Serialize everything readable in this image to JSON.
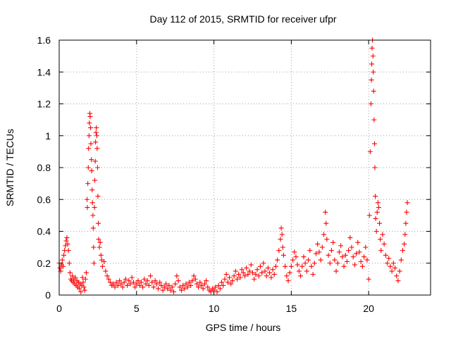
{
  "chart_data": {
    "type": "scatter",
    "title": "Day 112 of 2015, SRMTID for receiver ufpr",
    "xlabel": "GPS time / hours",
    "ylabel": "SRMTID / TECUs",
    "xlim": [
      0,
      24
    ],
    "ylim": [
      0,
      1.6
    ],
    "xticks": [
      0,
      5,
      10,
      15,
      20
    ],
    "xtick_labels": [
      "0",
      "5",
      "10",
      "15",
      "20"
    ],
    "yticks": [
      0,
      0.2,
      0.4,
      0.6,
      0.8,
      1.0,
      1.2,
      1.4,
      1.6
    ],
    "ytick_labels": [
      "0",
      "0.2",
      "0.4",
      "0.6",
      "0.8",
      "1",
      "1.2",
      "1.4",
      "1.6"
    ],
    "grid": true,
    "marker": "+",
    "series": [
      {
        "name": "SRMTID",
        "color": "#ff0000",
        "points": [
          [
            0.0,
            0.2
          ],
          [
            0.05,
            0.17
          ],
          [
            0.1,
            0.15
          ],
          [
            0.15,
            0.19
          ],
          [
            0.2,
            0.22
          ],
          [
            0.25,
            0.18
          ],
          [
            0.3,
            0.25
          ],
          [
            0.35,
            0.28
          ],
          [
            0.4,
            0.31
          ],
          [
            0.45,
            0.34
          ],
          [
            0.5,
            0.36
          ],
          [
            0.55,
            0.32
          ],
          [
            0.6,
            0.28
          ],
          [
            0.65,
            0.2
          ],
          [
            0.7,
            0.14
          ],
          [
            0.75,
            0.1
          ],
          [
            0.8,
            0.09
          ],
          [
            0.85,
            0.12
          ],
          [
            0.9,
            0.08
          ],
          [
            0.95,
            0.1
          ],
          [
            1.0,
            0.07
          ],
          [
            1.05,
            0.11
          ],
          [
            1.1,
            0.06
          ],
          [
            1.15,
            0.09
          ],
          [
            1.2,
            0.05
          ],
          [
            1.25,
            0.08
          ],
          [
            1.3,
            0.04
          ],
          [
            1.35,
            0.07
          ],
          [
            1.4,
            0.02
          ],
          [
            1.45,
            0.06
          ],
          [
            1.5,
            0.11
          ],
          [
            1.55,
            0.08
          ],
          [
            1.6,
            0.05
          ],
          [
            1.65,
            0.03
          ],
          [
            1.7,
            0.1
          ],
          [
            1.75,
            0.14
          ],
          [
            1.8,
            0.6
          ],
          [
            1.82,
            0.55
          ],
          [
            1.85,
            0.7
          ],
          [
            1.88,
            0.8
          ],
          [
            1.9,
            0.92
          ],
          [
            1.93,
            1.0
          ],
          [
            1.95,
            1.08
          ],
          [
            1.98,
            1.14
          ],
          [
            2.0,
            1.12
          ],
          [
            2.03,
            1.05
          ],
          [
            2.05,
            0.95
          ],
          [
            2.08,
            0.85
          ],
          [
            2.1,
            0.78
          ],
          [
            2.13,
            0.66
          ],
          [
            2.15,
            0.58
          ],
          [
            2.18,
            0.5
          ],
          [
            2.2,
            0.42
          ],
          [
            2.22,
            0.3
          ],
          [
            2.25,
            0.2
          ],
          [
            2.28,
            0.55
          ],
          [
            2.3,
            0.72
          ],
          [
            2.33,
            0.84
          ],
          [
            2.35,
            0.96
          ],
          [
            2.38,
            1.02
          ],
          [
            2.4,
            1.05
          ],
          [
            2.43,
            1.0
          ],
          [
            2.45,
            0.92
          ],
          [
            2.48,
            0.8
          ],
          [
            2.5,
            0.62
          ],
          [
            2.53,
            0.45
          ],
          [
            2.55,
            0.35
          ],
          [
            2.6,
            0.3
          ],
          [
            2.65,
            0.33
          ],
          [
            2.7,
            0.25
          ],
          [
            2.75,
            0.22
          ],
          [
            2.8,
            0.18
          ],
          [
            2.9,
            0.21
          ],
          [
            3.0,
            0.15
          ],
          [
            3.1,
            0.12
          ],
          [
            3.2,
            0.1
          ],
          [
            3.3,
            0.08
          ],
          [
            3.4,
            0.06
          ],
          [
            3.5,
            0.07
          ],
          [
            3.6,
            0.05
          ],
          [
            3.7,
            0.08
          ],
          [
            3.8,
            0.06
          ],
          [
            3.9,
            0.09
          ],
          [
            4.0,
            0.07
          ],
          [
            4.1,
            0.05
          ],
          [
            4.2,
            0.08
          ],
          [
            4.3,
            0.1
          ],
          [
            4.4,
            0.06
          ],
          [
            4.5,
            0.09
          ],
          [
            4.6,
            0.07
          ],
          [
            4.7,
            0.11
          ],
          [
            4.8,
            0.08
          ],
          [
            4.9,
            0.05
          ],
          [
            5.0,
            0.07
          ],
          [
            5.1,
            0.09
          ],
          [
            5.2,
            0.06
          ],
          [
            5.3,
            0.08
          ],
          [
            5.4,
            0.05
          ],
          [
            5.5,
            0.1
          ],
          [
            5.6,
            0.07
          ],
          [
            5.7,
            0.09
          ],
          [
            5.8,
            0.06
          ],
          [
            5.9,
            0.12
          ],
          [
            6.0,
            0.08
          ],
          [
            6.1,
            0.05
          ],
          [
            6.2,
            0.09
          ],
          [
            6.3,
            0.07
          ],
          [
            6.4,
            0.04
          ],
          [
            6.5,
            0.08
          ],
          [
            6.6,
            0.06
          ],
          [
            6.7,
            0.03
          ],
          [
            6.8,
            0.05
          ],
          [
            6.9,
            0.07
          ],
          [
            7.0,
            0.04
          ],
          [
            7.1,
            0.06
          ],
          [
            7.2,
            0.03
          ],
          [
            7.3,
            0.05
          ],
          [
            7.4,
            0.02
          ],
          [
            7.5,
            0.07
          ],
          [
            7.6,
            0.12
          ],
          [
            7.7,
            0.09
          ],
          [
            7.8,
            0.05
          ],
          [
            7.9,
            0.03
          ],
          [
            8.0,
            0.06
          ],
          [
            8.1,
            0.04
          ],
          [
            8.2,
            0.07
          ],
          [
            8.3,
            0.05
          ],
          [
            8.4,
            0.08
          ],
          [
            8.5,
            0.06
          ],
          [
            8.6,
            0.09
          ],
          [
            8.7,
            0.12
          ],
          [
            8.8,
            0.1
          ],
          [
            8.9,
            0.07
          ],
          [
            9.0,
            0.05
          ],
          [
            9.1,
            0.08
          ],
          [
            9.2,
            0.06
          ],
          [
            9.3,
            0.04
          ],
          [
            9.4,
            0.07
          ],
          [
            9.5,
            0.09
          ],
          [
            9.6,
            0.05
          ],
          [
            9.7,
            0.03
          ],
          [
            9.8,
            0.02
          ],
          [
            9.9,
            0.04
          ],
          [
            10.0,
            0.03
          ],
          [
            10.1,
            0.05
          ],
          [
            10.2,
            0.02
          ],
          [
            10.3,
            0.06
          ],
          [
            10.4,
            0.04
          ],
          [
            10.5,
            0.08
          ],
          [
            10.6,
            0.06
          ],
          [
            10.7,
            0.1
          ],
          [
            10.8,
            0.13
          ],
          [
            10.9,
            0.08
          ],
          [
            11.0,
            0.11
          ],
          [
            11.1,
            0.07
          ],
          [
            11.2,
            0.09
          ],
          [
            11.3,
            0.12
          ],
          [
            11.4,
            0.15
          ],
          [
            11.5,
            0.1
          ],
          [
            11.6,
            0.13
          ],
          [
            11.7,
            0.11
          ],
          [
            11.8,
            0.16
          ],
          [
            11.9,
            0.14
          ],
          [
            12.0,
            0.12
          ],
          [
            12.1,
            0.17
          ],
          [
            12.2,
            0.13
          ],
          [
            12.3,
            0.15
          ],
          [
            12.4,
            0.19
          ],
          [
            12.5,
            0.14
          ],
          [
            12.6,
            0.1
          ],
          [
            12.7,
            0.13
          ],
          [
            12.8,
            0.16
          ],
          [
            12.9,
            0.12
          ],
          [
            13.0,
            0.18
          ],
          [
            13.1,
            0.14
          ],
          [
            13.2,
            0.2
          ],
          [
            13.3,
            0.15
          ],
          [
            13.4,
            0.12
          ],
          [
            13.5,
            0.17
          ],
          [
            13.6,
            0.14
          ],
          [
            13.7,
            0.11
          ],
          [
            13.8,
            0.16
          ],
          [
            13.9,
            0.13
          ],
          [
            14.0,
            0.18
          ],
          [
            14.1,
            0.22
          ],
          [
            14.2,
            0.28
          ],
          [
            14.3,
            0.35
          ],
          [
            14.35,
            0.42
          ],
          [
            14.4,
            0.38
          ],
          [
            14.45,
            0.3
          ],
          [
            14.5,
            0.25
          ],
          [
            14.6,
            0.18
          ],
          [
            14.7,
            0.12
          ],
          [
            14.8,
            0.09
          ],
          [
            14.9,
            0.14
          ],
          [
            15.0,
            0.18
          ],
          [
            15.1,
            0.22
          ],
          [
            15.2,
            0.27
          ],
          [
            15.3,
            0.24
          ],
          [
            15.4,
            0.19
          ],
          [
            15.5,
            0.15
          ],
          [
            15.6,
            0.12
          ],
          [
            15.7,
            0.18
          ],
          [
            15.8,
            0.24
          ],
          [
            15.9,
            0.2
          ],
          [
            16.0,
            0.15
          ],
          [
            16.1,
            0.22
          ],
          [
            16.2,
            0.28
          ],
          [
            16.3,
            0.18
          ],
          [
            16.4,
            0.13
          ],
          [
            16.5,
            0.2
          ],
          [
            16.6,
            0.26
          ],
          [
            16.7,
            0.32
          ],
          [
            16.8,
            0.27
          ],
          [
            16.9,
            0.22
          ],
          [
            17.0,
            0.3
          ],
          [
            17.1,
            0.38
          ],
          [
            17.2,
            0.52
          ],
          [
            17.25,
            0.45
          ],
          [
            17.3,
            0.35
          ],
          [
            17.4,
            0.25
          ],
          [
            17.5,
            0.2
          ],
          [
            17.6,
            0.28
          ],
          [
            17.7,
            0.33
          ],
          [
            17.8,
            0.22
          ],
          [
            17.9,
            0.15
          ],
          [
            18.0,
            0.2
          ],
          [
            18.1,
            0.27
          ],
          [
            18.2,
            0.31
          ],
          [
            18.3,
            0.24
          ],
          [
            18.4,
            0.18
          ],
          [
            18.5,
            0.25
          ],
          [
            18.6,
            0.21
          ],
          [
            18.7,
            0.28
          ],
          [
            18.8,
            0.36
          ],
          [
            18.9,
            0.3
          ],
          [
            19.0,
            0.24
          ],
          [
            19.1,
            0.19
          ],
          [
            19.2,
            0.26
          ],
          [
            19.3,
            0.33
          ],
          [
            19.4,
            0.27
          ],
          [
            19.5,
            0.21
          ],
          [
            19.6,
            0.18
          ],
          [
            19.7,
            0.24
          ],
          [
            19.8,
            0.3
          ],
          [
            19.9,
            0.22
          ],
          [
            20.0,
            0.1
          ],
          [
            20.05,
            0.5
          ],
          [
            20.1,
            0.9
          ],
          [
            20.15,
            1.2
          ],
          [
            20.18,
            1.35
          ],
          [
            20.2,
            1.45
          ],
          [
            20.22,
            1.55
          ],
          [
            20.25,
            1.6
          ],
          [
            20.28,
            1.5
          ],
          [
            20.3,
            1.4
          ],
          [
            20.32,
            1.28
          ],
          [
            20.35,
            1.1
          ],
          [
            20.38,
            0.95
          ],
          [
            20.4,
            0.8
          ],
          [
            20.43,
            0.62
          ],
          [
            20.45,
            0.48
          ],
          [
            20.5,
            0.4
          ],
          [
            20.55,
            0.52
          ],
          [
            20.6,
            0.58
          ],
          [
            20.65,
            0.55
          ],
          [
            20.7,
            0.45
          ],
          [
            20.75,
            0.35
          ],
          [
            20.8,
            0.28
          ],
          [
            20.9,
            0.38
          ],
          [
            21.0,
            0.32
          ],
          [
            21.1,
            0.25
          ],
          [
            21.2,
            0.2
          ],
          [
            21.3,
            0.23
          ],
          [
            21.4,
            0.18
          ],
          [
            21.5,
            0.15
          ],
          [
            21.6,
            0.2
          ],
          [
            21.7,
            0.17
          ],
          [
            21.8,
            0.12
          ],
          [
            21.9,
            0.09
          ],
          [
            22.0,
            0.15
          ],
          [
            22.1,
            0.22
          ],
          [
            22.2,
            0.28
          ],
          [
            22.3,
            0.32
          ],
          [
            22.35,
            0.38
          ],
          [
            22.4,
            0.45
          ],
          [
            22.45,
            0.52
          ],
          [
            22.5,
            0.58
          ]
        ]
      }
    ]
  }
}
